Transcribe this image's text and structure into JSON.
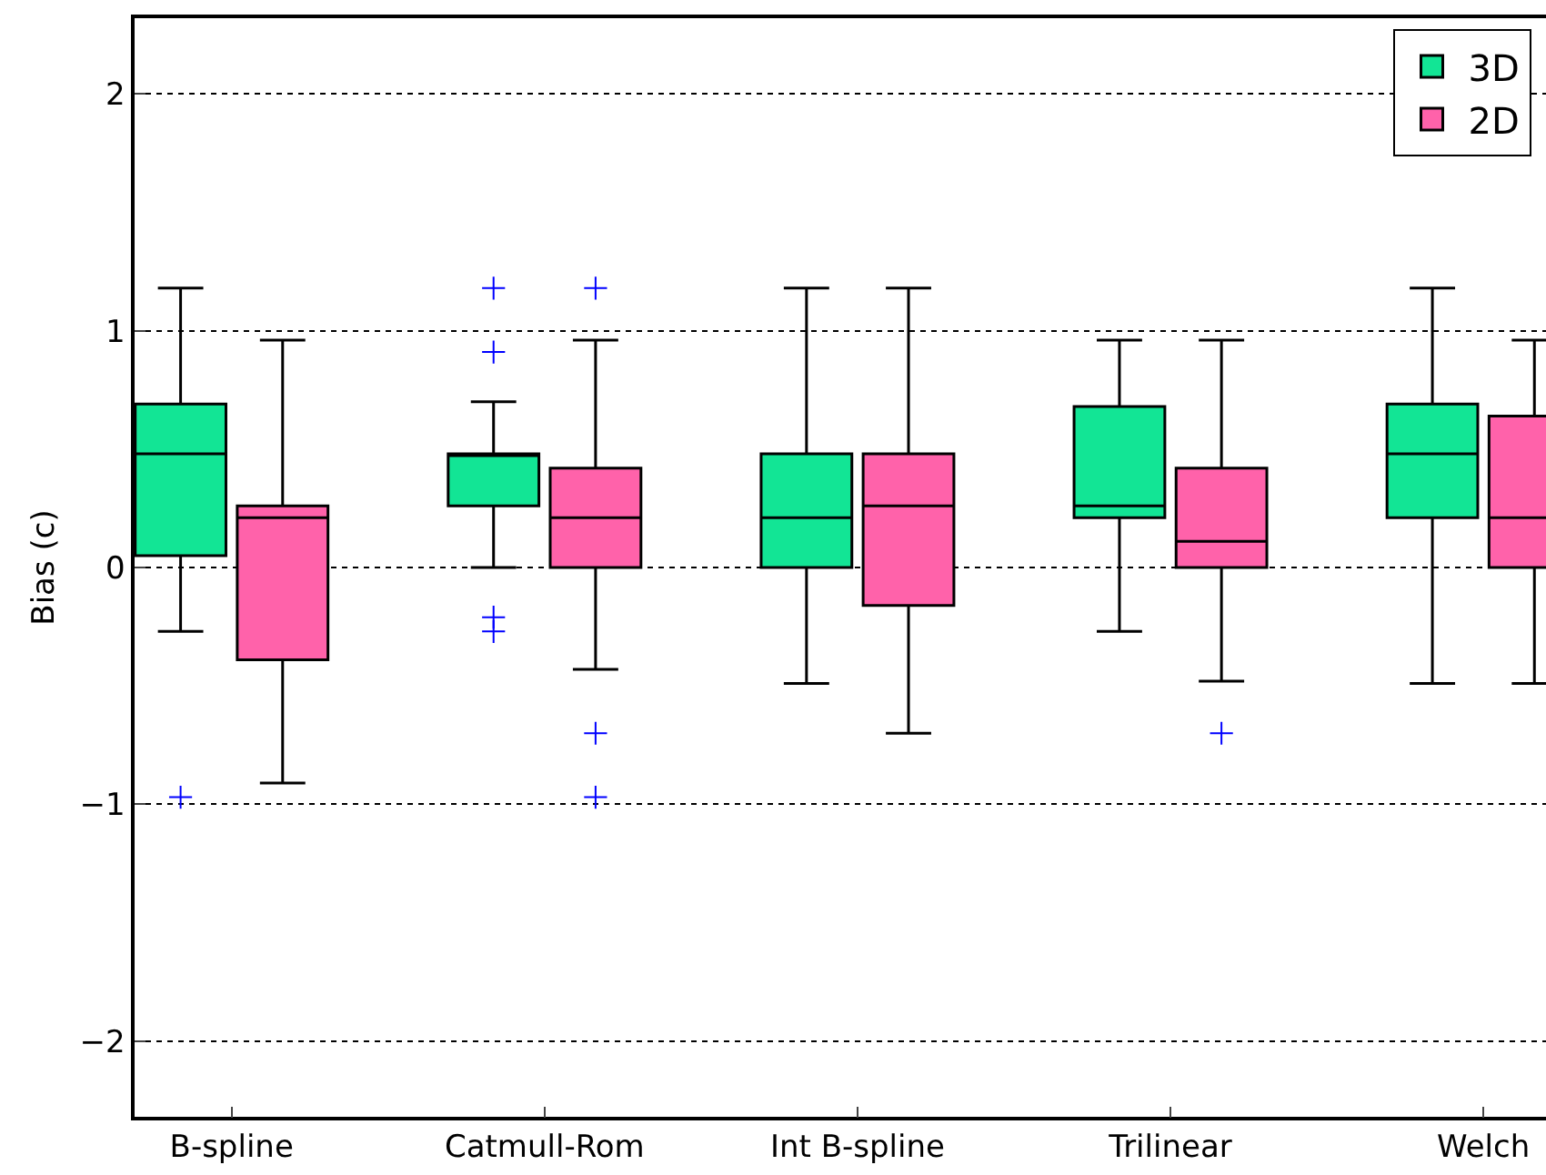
{
  "chart_data": {
    "type": "box",
    "ylabel": "Bias (c)",
    "categories": [
      "B-spline",
      "Catmull-Rom",
      "Int B-spline",
      "Trilinear",
      "Welch"
    ],
    "ylim": [
      -2.32,
      2.32
    ],
    "yticks": [
      {
        "value": -2,
        "label": "−2"
      },
      {
        "value": -1,
        "label": "−1"
      },
      0,
      1,
      2
    ],
    "grid": "y",
    "legend": "top right",
    "marker": "cross",
    "series": [
      {
        "name": "3D",
        "color": "#12e595",
        "boxes": [
          {
            "low": -0.27,
            "q1": 0.05,
            "median": 0.48,
            "q3": 0.69,
            "high": 1.18,
            "outliers": [
              -0.97
            ]
          },
          {
            "low": 0,
            "q1": 0.26,
            "median": 0.48,
            "q3": 0.48,
            "high": 0.7,
            "outliers": [
              1.18,
              0.91,
              -0.21,
              -0.27
            ]
          },
          {
            "low": -0.49,
            "q1": 0,
            "median": 0.21,
            "q3": 0.48,
            "high": 1.18
          },
          {
            "low": -0.27,
            "q1": 0.21,
            "median": 0.26,
            "q3": 0.68,
            "high": 0.96
          },
          {
            "low": -0.49,
            "q1": 0.21,
            "median": 0.48,
            "q3": 0.69,
            "high": 1.18
          }
        ]
      },
      {
        "name": "2D",
        "color": "#ff62aa",
        "boxes": [
          {
            "low": -0.91,
            "q1": -0.39,
            "median": 0.21,
            "q3": 0.26,
            "high": 0.96
          },
          {
            "low": -0.43,
            "q1": 0,
            "median": 0.21,
            "q3": 0.42,
            "high": 0.96,
            "outliers": [
              1.18,
              -0.7,
              -0.97
            ]
          },
          {
            "low": -0.7,
            "q1": -0.16,
            "median": 0.26,
            "q3": 0.48,
            "high": 1.18
          },
          {
            "low": -0.48,
            "q1": 0,
            "median": 0.11,
            "q3": 0.42,
            "high": 0.96,
            "outliers": [
              -0.7
            ]
          },
          {
            "low": -0.49,
            "q1": 0,
            "median": 0.21,
            "q3": 0.64,
            "high": 0.96
          }
        ]
      }
    ]
  }
}
